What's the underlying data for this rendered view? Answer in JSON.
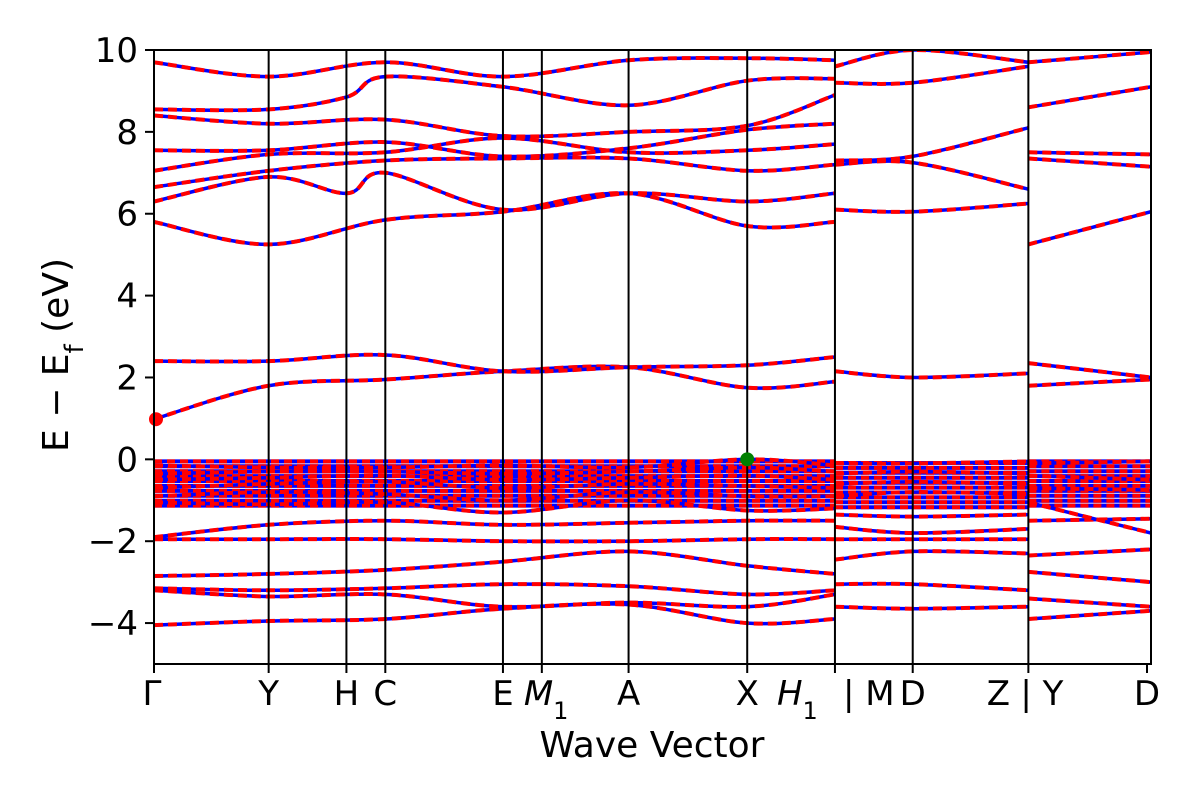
{
  "chart_data": {
    "type": "line",
    "xlabel": "Wave Vector",
    "ylabel_main": "E − E",
    "ylabel_sub": "f",
    "ylabel_unit": " (eV)",
    "ylim": [
      -5,
      10
    ],
    "yticks": [
      -4,
      -2,
      0,
      2,
      4,
      6,
      8,
      10
    ],
    "ytick_labels": [
      "−4",
      "−2",
      "0",
      "2",
      "4",
      "6",
      "8",
      "10"
    ],
    "grid": false,
    "legend": "none",
    "colors": {
      "spin_up": "#ff0000",
      "spin_down": "#0000ff",
      "vbm": "#008000",
      "cbm": "#ff0000",
      "kline": "#000000"
    },
    "kpath": [
      {
        "label": "Γ",
        "pos": 0.0
      },
      {
        "label": "Y",
        "pos": 0.115
      },
      {
        "label": "H",
        "pos": 0.193
      },
      {
        "label": "C",
        "pos": 0.232
      },
      {
        "label": "E",
        "pos": 0.35
      },
      {
        "label": "M",
        "sub": "1",
        "pos": 0.389
      },
      {
        "label": "A",
        "pos": 0.476
      },
      {
        "label": "X",
        "pos": 0.595
      },
      {
        "label": "H",
        "sub": "1",
        "pos": 0.683
      },
      {
        "label": "| M",
        "pos": 0.683
      },
      {
        "label": "D",
        "pos": 0.761
      },
      {
        "label": "Z",
        "pos": 0.877
      },
      {
        "label": "| Y",
        "pos": 0.877
      },
      {
        "label": "D",
        "pos": 0.996
      }
    ],
    "tick_text": [
      "Γ",
      "Y",
      "H",
      "C",
      "E",
      "M",
      "1",
      "A",
      "X",
      "H",
      "1",
      "| M",
      "D",
      "Z",
      "| Y",
      "D"
    ],
    "kline_positions": [
      0.115,
      0.193,
      0.232,
      0.35,
      0.389,
      0.476,
      0.595,
      0.683,
      0.761,
      0.877
    ],
    "segments": [
      [
        0,
        0.683
      ],
      [
        0.683,
        0.877
      ],
      [
        0.877,
        1.0
      ]
    ],
    "vbm": {
      "x": 0.595,
      "y": 0.0
    },
    "cbm": {
      "x": 0.0,
      "y": 0.98
    },
    "bands": [
      [
        [
          0,
          -4.05
        ],
        [
          0.115,
          -3.95
        ],
        [
          0.232,
          -3.9
        ],
        [
          0.35,
          -3.65
        ],
        [
          0.476,
          -3.55
        ],
        [
          0.595,
          -4.0
        ],
        [
          0.683,
          -3.9
        ]
      ],
      [
        [
          0,
          -3.2
        ],
        [
          0.115,
          -3.35
        ],
        [
          0.232,
          -3.3
        ],
        [
          0.35,
          -3.6
        ],
        [
          0.476,
          -3.5
        ],
        [
          0.595,
          -3.6
        ],
        [
          0.683,
          -3.3
        ]
      ],
      [
        [
          0,
          -3.15
        ],
        [
          0.115,
          -3.2
        ],
        [
          0.232,
          -3.15
        ],
        [
          0.35,
          -3.05
        ],
        [
          0.476,
          -3.1
        ],
        [
          0.595,
          -3.3
        ],
        [
          0.683,
          -3.2
        ]
      ],
      [
        [
          0,
          -2.85
        ],
        [
          0.115,
          -2.8
        ],
        [
          0.232,
          -2.7
        ],
        [
          0.35,
          -2.5
        ],
        [
          0.476,
          -2.25
        ],
        [
          0.595,
          -2.6
        ],
        [
          0.683,
          -2.8
        ]
      ],
      [
        [
          0,
          -1.95
        ],
        [
          0.115,
          -1.95
        ],
        [
          0.232,
          -1.95
        ],
        [
          0.35,
          -2.0
        ],
        [
          0.476,
          -2.0
        ],
        [
          0.595,
          -1.95
        ],
        [
          0.683,
          -1.95
        ]
      ],
      [
        [
          0,
          -1.9
        ],
        [
          0.115,
          -1.6
        ],
        [
          0.232,
          -1.5
        ],
        [
          0.35,
          -1.6
        ],
        [
          0.476,
          -1.55
        ],
        [
          0.595,
          -1.5
        ],
        [
          0.683,
          -1.5
        ]
      ],
      [
        [
          0,
          -1.05
        ],
        [
          0.115,
          -1.1
        ],
        [
          0.232,
          -1.05
        ],
        [
          0.35,
          -1.3
        ],
        [
          0.476,
          -1.0
        ],
        [
          0.595,
          -1.25
        ],
        [
          0.683,
          -1.2
        ]
      ],
      [
        [
          0,
          -0.9
        ],
        [
          0.115,
          -0.8
        ],
        [
          0.232,
          -0.85
        ],
        [
          0.35,
          -1.0
        ],
        [
          0.476,
          -0.8
        ],
        [
          0.595,
          -0.9
        ],
        [
          0.683,
          -0.9
        ]
      ],
      [
        [
          0,
          -0.7
        ],
        [
          0.115,
          -0.6
        ],
        [
          0.232,
          -0.55
        ],
        [
          0.35,
          -0.7
        ],
        [
          0.476,
          -0.6
        ],
        [
          0.595,
          -0.65
        ],
        [
          0.683,
          -0.7
        ]
      ],
      [
        [
          0,
          -0.5
        ],
        [
          0.115,
          -0.45
        ],
        [
          0.232,
          -0.4
        ],
        [
          0.35,
          -0.5
        ],
        [
          0.476,
          -0.45
        ],
        [
          0.595,
          -0.4
        ],
        [
          0.683,
          -0.5
        ]
      ],
      [
        [
          0,
          -0.35
        ],
        [
          0.115,
          -0.3
        ],
        [
          0.232,
          -0.3
        ],
        [
          0.35,
          -0.35
        ],
        [
          0.476,
          -0.3
        ],
        [
          0.595,
          -0.2
        ],
        [
          0.683,
          -0.3
        ]
      ],
      [
        [
          0,
          -0.15
        ],
        [
          0.115,
          -0.2
        ],
        [
          0.232,
          -0.2
        ],
        [
          0.35,
          -0.15
        ],
        [
          0.476,
          -0.2
        ],
        [
          0.595,
          0.0
        ],
        [
          0.683,
          -0.15
        ]
      ],
      [
        [
          0,
          0.98
        ],
        [
          0.115,
          1.8
        ],
        [
          0.232,
          1.95
        ],
        [
          0.35,
          2.15
        ],
        [
          0.476,
          2.25
        ],
        [
          0.595,
          1.75
        ],
        [
          0.683,
          1.9
        ]
      ],
      [
        [
          0,
          2.4
        ],
        [
          0.115,
          2.4
        ],
        [
          0.232,
          2.55
        ],
        [
          0.35,
          2.15
        ],
        [
          0.476,
          2.25
        ],
        [
          0.595,
          2.3
        ],
        [
          0.683,
          2.5
        ]
      ],
      [
        [
          0,
          5.8
        ],
        [
          0.115,
          5.25
        ],
        [
          0.232,
          5.85
        ],
        [
          0.35,
          6.05
        ],
        [
          0.476,
          6.5
        ],
        [
          0.595,
          5.7
        ],
        [
          0.683,
          5.8
        ]
      ],
      [
        [
          0,
          6.3
        ],
        [
          0.115,
          6.9
        ],
        [
          0.193,
          6.5
        ],
        [
          0.232,
          7.0
        ],
        [
          0.35,
          6.1
        ],
        [
          0.476,
          6.5
        ],
        [
          0.595,
          6.3
        ],
        [
          0.683,
          6.5
        ]
      ],
      [
        [
          0,
          6.65
        ],
        [
          0.115,
          7.05
        ],
        [
          0.232,
          7.3
        ],
        [
          0.35,
          7.35
        ],
        [
          0.476,
          7.35
        ],
        [
          0.595,
          7.05
        ],
        [
          0.683,
          7.2
        ]
      ],
      [
        [
          0,
          7.05
        ],
        [
          0.115,
          7.45
        ],
        [
          0.232,
          7.5
        ],
        [
          0.35,
          7.85
        ],
        [
          0.476,
          7.5
        ],
        [
          0.595,
          7.55
        ],
        [
          0.683,
          7.7
        ]
      ],
      [
        [
          0,
          7.55
        ],
        [
          0.115,
          7.55
        ],
        [
          0.232,
          7.75
        ],
        [
          0.35,
          7.4
        ],
        [
          0.476,
          7.6
        ],
        [
          0.595,
          8.05
        ],
        [
          0.683,
          8.2
        ]
      ],
      [
        [
          0,
          8.4
        ],
        [
          0.115,
          8.2
        ],
        [
          0.232,
          8.3
        ],
        [
          0.35,
          7.9
        ],
        [
          0.476,
          8.0
        ],
        [
          0.595,
          8.15
        ],
        [
          0.683,
          8.9
        ]
      ],
      [
        [
          0,
          8.55
        ],
        [
          0.115,
          8.55
        ],
        [
          0.193,
          8.85
        ],
        [
          0.232,
          9.35
        ],
        [
          0.35,
          9.1
        ],
        [
          0.476,
          8.65
        ],
        [
          0.595,
          9.25
        ],
        [
          0.683,
          9.3
        ]
      ],
      [
        [
          0,
          9.7
        ],
        [
          0.115,
          9.35
        ],
        [
          0.232,
          9.7
        ],
        [
          0.35,
          9.35
        ],
        [
          0.476,
          9.75
        ],
        [
          0.595,
          9.8
        ],
        [
          0.683,
          9.75
        ]
      ],
      [
        [
          0.683,
          -3.6
        ],
        [
          0.761,
          -3.65
        ],
        [
          0.877,
          -3.6
        ]
      ],
      [
        [
          0.683,
          -3.05
        ],
        [
          0.761,
          -3.05
        ],
        [
          0.877,
          -3.2
        ]
      ],
      [
        [
          0.683,
          -2.45
        ],
        [
          0.761,
          -2.25
        ],
        [
          0.877,
          -2.3
        ]
      ],
      [
        [
          0.683,
          -1.95
        ],
        [
          0.761,
          -1.95
        ],
        [
          0.877,
          -1.95
        ]
      ],
      [
        [
          0.683,
          -1.65
        ],
        [
          0.761,
          -1.8
        ],
        [
          0.877,
          -1.7
        ]
      ],
      [
        [
          0.683,
          -1.35
        ],
        [
          0.761,
          -1.4
        ],
        [
          0.877,
          -1.35
        ]
      ],
      [
        [
          0.683,
          -0.9
        ],
        [
          0.761,
          -0.8
        ],
        [
          0.877,
          -0.85
        ]
      ],
      [
        [
          0.683,
          -0.6
        ],
        [
          0.761,
          -0.55
        ],
        [
          0.877,
          -0.6
        ]
      ],
      [
        [
          0.683,
          -0.35
        ],
        [
          0.761,
          -0.3
        ],
        [
          0.877,
          -0.35
        ]
      ],
      [
        [
          0.683,
          -0.1
        ],
        [
          0.761,
          -0.1
        ],
        [
          0.877,
          -0.05
        ]
      ],
      [
        [
          0.683,
          2.15
        ],
        [
          0.761,
          2.0
        ],
        [
          0.877,
          2.1
        ]
      ],
      [
        [
          0.683,
          6.1
        ],
        [
          0.761,
          6.05
        ],
        [
          0.877,
          6.25
        ]
      ],
      [
        [
          0.683,
          7.2
        ],
        [
          0.761,
          7.25
        ],
        [
          0.877,
          6.6
        ]
      ],
      [
        [
          0.683,
          7.3
        ],
        [
          0.761,
          7.4
        ],
        [
          0.877,
          8.1
        ]
      ],
      [
        [
          0.683,
          9.2
        ],
        [
          0.761,
          9.2
        ],
        [
          0.877,
          9.6
        ]
      ],
      [
        [
          0.683,
          9.6
        ],
        [
          0.761,
          10.0
        ],
        [
          0.877,
          9.7
        ]
      ],
      [
        [
          0.877,
          -3.9
        ],
        [
          1.0,
          -3.7
        ]
      ],
      [
        [
          0.877,
          -3.4
        ],
        [
          1.0,
          -3.6
        ]
      ],
      [
        [
          0.877,
          -2.75
        ],
        [
          1.0,
          -3.0
        ]
      ],
      [
        [
          0.877,
          -2.35
        ],
        [
          1.0,
          -2.2
        ]
      ],
      [
        [
          0.877,
          -1.5
        ],
        [
          1.0,
          -1.45
        ]
      ],
      [
        [
          0.877,
          -1.05
        ],
        [
          1.0,
          -1.8
        ]
      ],
      [
        [
          0.877,
          -0.7
        ],
        [
          1.0,
          -0.75
        ]
      ],
      [
        [
          0.877,
          -0.4
        ],
        [
          1.0,
          -0.5
        ]
      ],
      [
        [
          0.877,
          -0.1
        ],
        [
          1.0,
          -0.05
        ]
      ],
      [
        [
          0.877,
          1.8
        ],
        [
          1.0,
          1.95
        ]
      ],
      [
        [
          0.877,
          2.35
        ],
        [
          1.0,
          2.0
        ]
      ],
      [
        [
          0.877,
          5.25
        ],
        [
          1.0,
          6.05
        ]
      ],
      [
        [
          0.877,
          7.35
        ],
        [
          1.0,
          7.15
        ]
      ],
      [
        [
          0.877,
          7.5
        ],
        [
          1.0,
          7.45
        ]
      ],
      [
        [
          0.877,
          8.6
        ],
        [
          1.0,
          9.1
        ]
      ],
      [
        [
          0.877,
          9.7
        ],
        [
          1.0,
          9.95
        ]
      ]
    ]
  }
}
